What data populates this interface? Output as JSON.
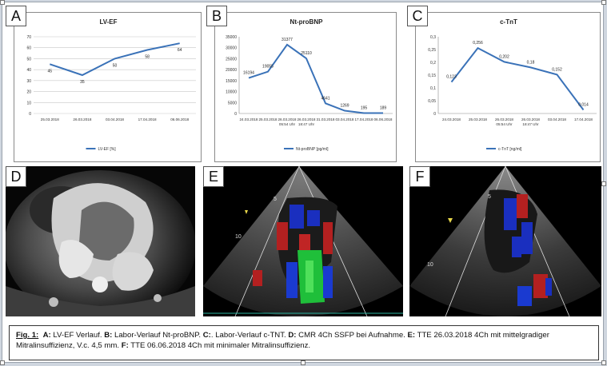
{
  "panels": {
    "a": {
      "letter": "A"
    },
    "b": {
      "letter": "B"
    },
    "c": {
      "letter": "C"
    },
    "d": {
      "letter": "D"
    },
    "e": {
      "letter": "E"
    },
    "f": {
      "letter": "F"
    }
  },
  "chart_data": [
    {
      "type": "line",
      "title": "LV-EF",
      "categories": [
        "25.03.2018",
        "26.03.2018",
        "03.04.2018",
        "17.04.2018",
        "06.06.2018"
      ],
      "series": [
        {
          "name": "LV-EF [%]",
          "values": [
            45,
            35,
            50,
            58,
            64
          ]
        }
      ],
      "data_labels": [
        "45",
        "35",
        "50",
        "58",
        "64"
      ],
      "yticks": [
        "0",
        "10",
        "20",
        "30",
        "40",
        "50",
        "60",
        "70"
      ],
      "ylim": [
        0,
        70
      ],
      "grid": true,
      "legend": "bottom",
      "color": "#3a72b8"
    },
    {
      "type": "line",
      "title": "Nt-proBNP",
      "categories": [
        "24.03.2018",
        "25.03.2018",
        "26.03.2018\n05:54 Uhr",
        "26.03.2018\n18:47 Uhr",
        "31.03.2018",
        "03.04.2018",
        "17.04.2018",
        "06.06.2018"
      ],
      "series": [
        {
          "name": "Nt-proBNP [pg/ml]",
          "values": [
            16194,
            19055,
            31377,
            25110,
            4641,
            1269,
            195,
            189
          ]
        }
      ],
      "data_labels": [
        "16194",
        "19055",
        "31377",
        "25110",
        "4641",
        "1269",
        "195",
        "189"
      ],
      "yticks": [
        "0",
        "5000",
        "10000",
        "15000",
        "20000",
        "25000",
        "30000",
        "35000"
      ],
      "ylim": [
        0,
        35000
      ],
      "grid": false,
      "legend": "bottom",
      "color": "#3a72b8"
    },
    {
      "type": "line",
      "title": "c-TnT",
      "categories": [
        "24.03.2018",
        "25.03.2018",
        "26.03.2018\n05:54 Uhr",
        "26.03.2018\n18:47 Uhr",
        "03.04.2018",
        "17.04.2018"
      ],
      "series": [
        {
          "name": "c-TnT [ng/ml]",
          "values": [
            0.123,
            0.256,
            0.202,
            0.18,
            0.152,
            0.014
          ]
        }
      ],
      "data_labels": [
        "0,123",
        "0,256",
        "0,202",
        "0,18",
        "0,152",
        "0,014"
      ],
      "yticks": [
        "0",
        "0,05",
        "0,1",
        "0,15",
        "0,2",
        "0,25",
        "0,3"
      ],
      "ylim": [
        0,
        0.3
      ],
      "grid": false,
      "legend": "bottom",
      "color": "#3a72b8"
    }
  ],
  "caption": {
    "fig_label": "Fig. 1:",
    "a_key": "A:",
    "a_text": " LV-EF Verlauf. ",
    "b_key": "B:",
    "b_text": " Labor-Verlauf Nt-proBNP. ",
    "c_key": "C:",
    "c_text": ". Labor-Verlauf c-TNT. ",
    "d_key": "D:",
    "d_text": " CMR 4Ch SSFP bei Aufnahme. ",
    "e_key": "E:",
    "e_text": " TTE 26.03.2018 4Ch mit mittelgradiger Mitralinsuffizienz, V.c. 4,5 mm. ",
    "f_key": "F:",
    "f_text": " TTE 06.06.2018 4Ch mit minimaler Mitralinsuffizienz."
  },
  "echo_labels": {
    "e_depth_5": "5",
    "e_depth_10": "10",
    "f_depth_5": "5",
    "f_depth_10": "10"
  }
}
